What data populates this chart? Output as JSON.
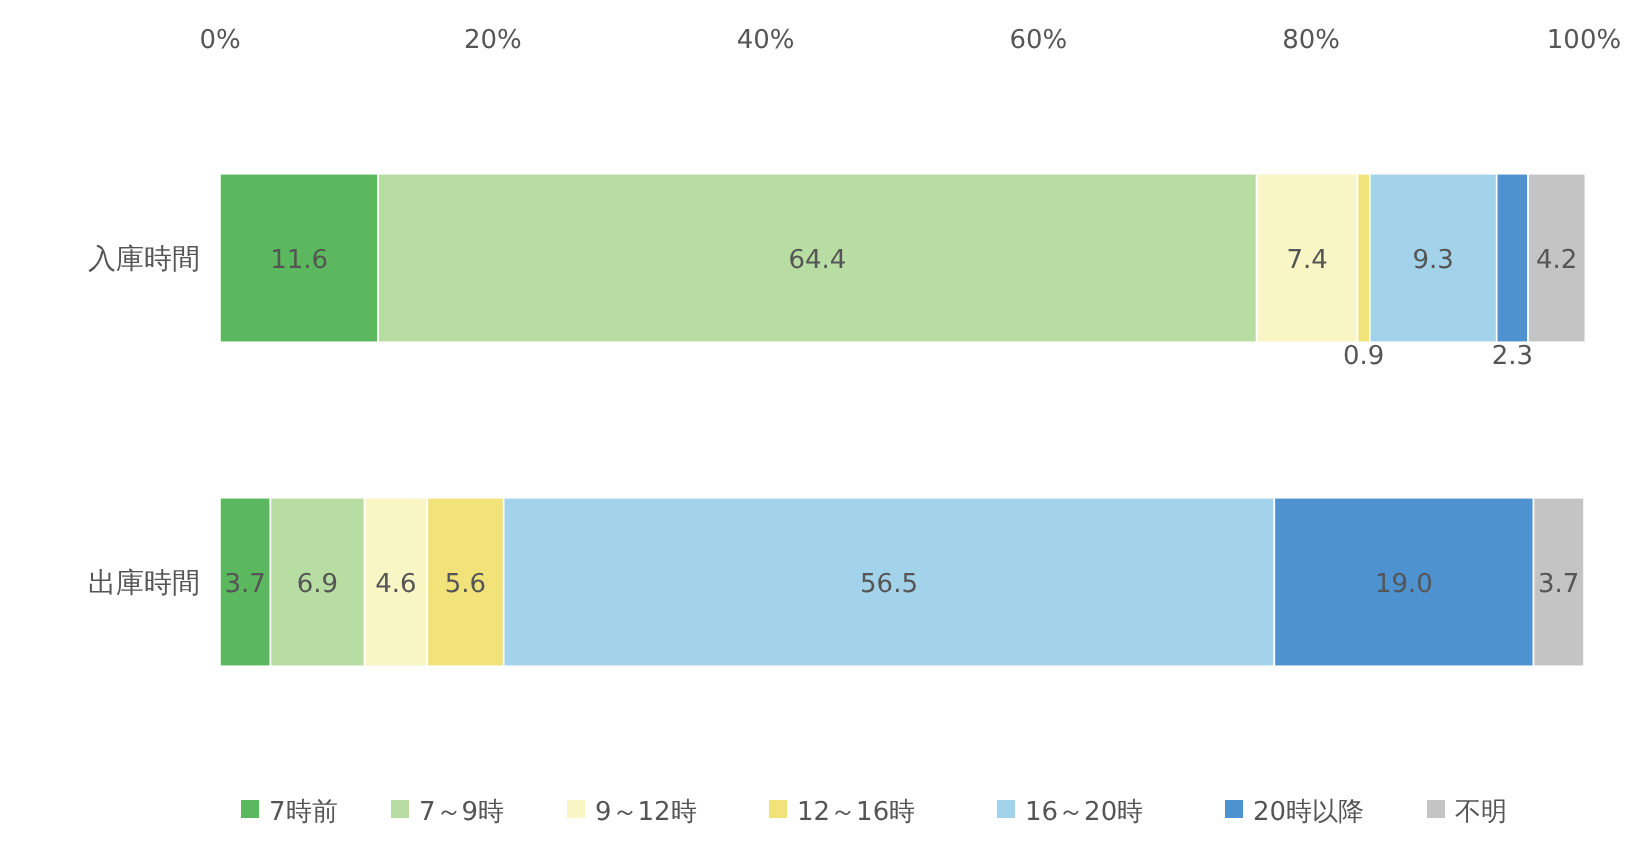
{
  "chart_data": {
    "type": "bar",
    "orientation": "horizontal",
    "stacked": true,
    "categories": [
      "入庫時間",
      "出庫時間"
    ],
    "xlim": [
      0,
      100
    ],
    "xticks": [
      {
        "value": 0,
        "label": "0%"
      },
      {
        "value": 20,
        "label": "20%"
      },
      {
        "value": 40,
        "label": "40%"
      },
      {
        "value": 60,
        "label": "60%"
      },
      {
        "value": 80,
        "label": "80%"
      },
      {
        "value": 100,
        "label": "100%"
      }
    ],
    "series": [
      {
        "name": "7時前",
        "color": "#5cb85f",
        "values": [
          11.6,
          3.7
        ],
        "value_labels": [
          "11.6",
          "3.7"
        ]
      },
      {
        "name": "7～9時",
        "color": "#b8dda2",
        "values": [
          64.4,
          6.9
        ],
        "value_labels": [
          "64.4",
          "6.9"
        ]
      },
      {
        "name": "9～12時",
        "color": "#f8f6c4",
        "values": [
          7.4,
          4.6
        ],
        "value_labels": [
          "7.4",
          "4.6"
        ]
      },
      {
        "name": "12～16時",
        "color": "#f1e27a",
        "values": [
          0.9,
          5.6
        ],
        "value_labels": [
          "0.9",
          "5.6"
        ]
      },
      {
        "name": "16～20時",
        "color": "#a3d3ea",
        "values": [
          9.3,
          56.5
        ],
        "value_labels": [
          "9.3",
          "56.5"
        ]
      },
      {
        "name": "20時以降",
        "color": "#4f92d0",
        "values": [
          2.3,
          19.0
        ],
        "value_labels": [
          "2.3",
          "19.0"
        ]
      },
      {
        "name": "不明",
        "color": "#c4c4c4",
        "values": [
          4.2,
          3.7
        ],
        "value_labels": [
          "4.2",
          "3.7"
        ]
      }
    ],
    "legend": "bottom",
    "grid": false
  }
}
